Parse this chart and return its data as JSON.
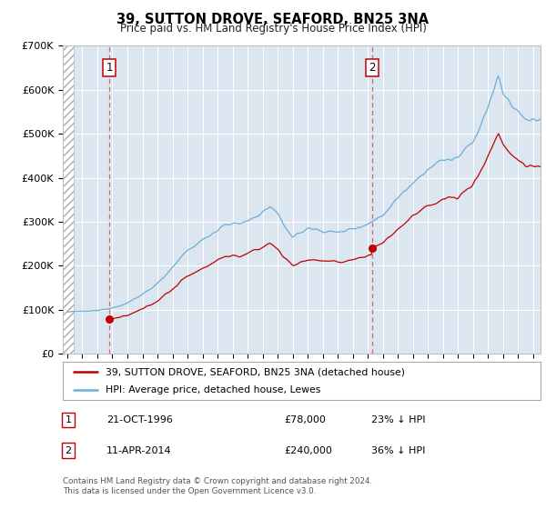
{
  "title": "39, SUTTON DROVE, SEAFORD, BN25 3NA",
  "subtitle": "Price paid vs. HM Land Registry's House Price Index (HPI)",
  "legend_line1": "39, SUTTON DROVE, SEAFORD, BN25 3NA (detached house)",
  "legend_line2": "HPI: Average price, detached house, Lewes",
  "transaction1_date": "21-OCT-1996",
  "transaction1_price": 78000,
  "transaction1_label": "£78,000",
  "transaction1_pct": "23% ↓ HPI",
  "transaction2_date": "11-APR-2014",
  "transaction2_price": 240000,
  "transaction2_label": "£240,000",
  "transaction2_pct": "36% ↓ HPI",
  "footnote": "Contains HM Land Registry data © Crown copyright and database right 2024.\nThis data is licensed under the Open Government Licence v3.0.",
  "hpi_color": "#6baed6",
  "price_color": "#c00000",
  "marker_color": "#c00000",
  "dashed_color": "#e06060",
  "bg_color": "#dce6f1",
  "ylim": [
    0,
    700000
  ],
  "xmin": 1993.7,
  "xmax": 2025.5,
  "transaction1_x": 1996.8,
  "transaction2_x": 2014.27,
  "hatch_end": 1994.42
}
